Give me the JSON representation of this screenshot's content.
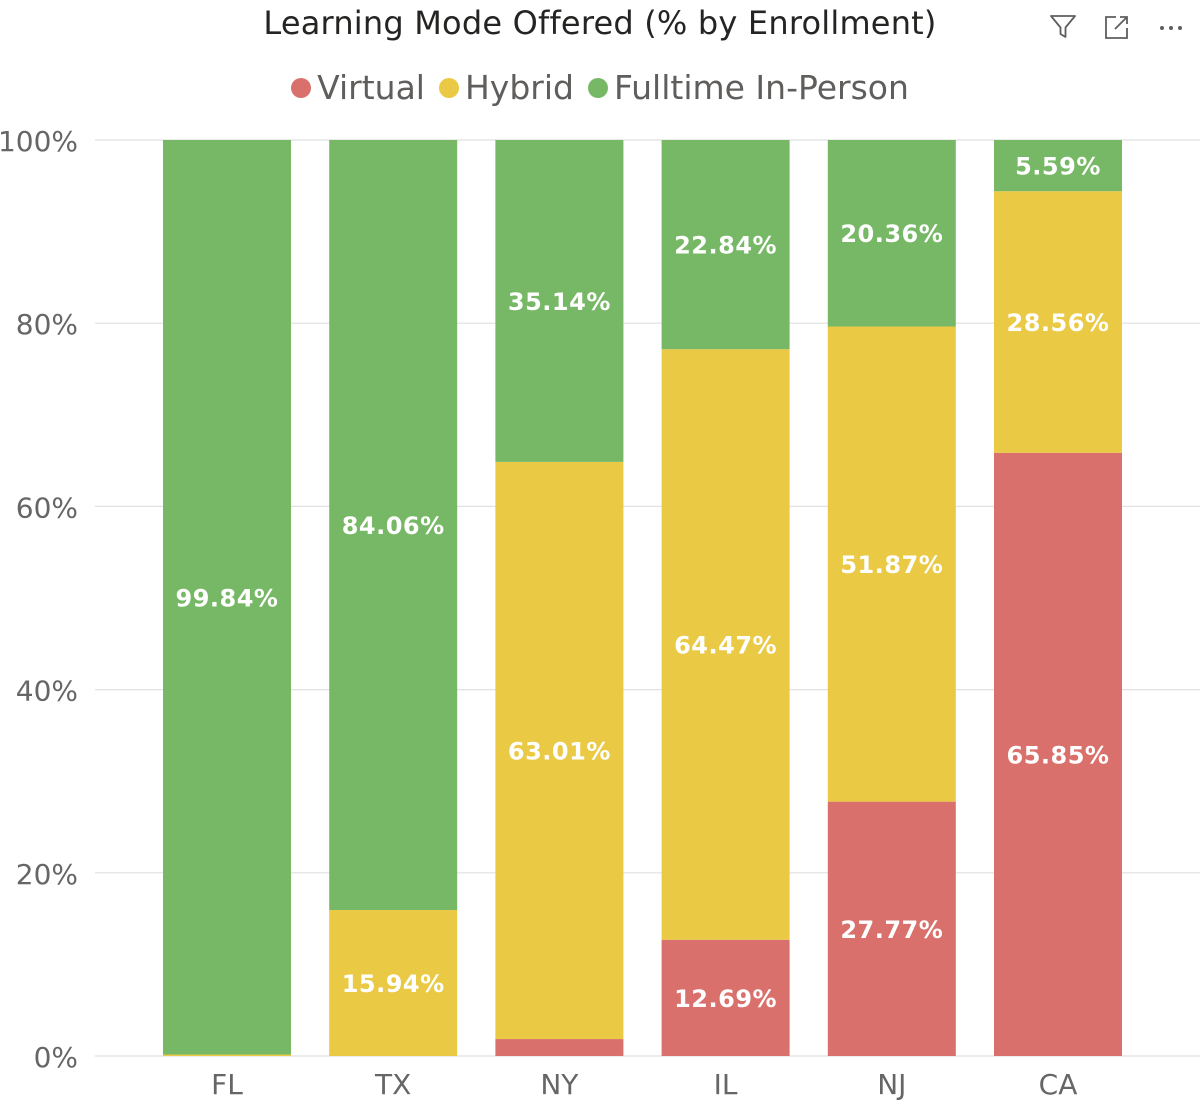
{
  "header": {
    "title": "Learning Mode Offered (% by Enrollment)",
    "icons": [
      "filter-icon",
      "focus-mode-icon",
      "more-options-icon"
    ]
  },
  "chart_data": {
    "type": "bar",
    "stacked": true,
    "title": "Learning Mode Offered (% by Enrollment)",
    "xlabel": "",
    "ylabel": "",
    "ylim": [
      0,
      100
    ],
    "y_ticks": [
      "0%",
      "20%",
      "40%",
      "60%",
      "80%",
      "100%"
    ],
    "categories": [
      "FL",
      "TX",
      "NY",
      "IL",
      "NJ",
      "CA"
    ],
    "legend_position": "top-center",
    "grid": true,
    "series": [
      {
        "name": "Virtual",
        "color": "#d9706b",
        "values": [
          0,
          0,
          1.85,
          12.69,
          27.77,
          65.85
        ],
        "labels": [
          "",
          "",
          "",
          "12.69%",
          "27.77%",
          "65.85%"
        ]
      },
      {
        "name": "Hybrid",
        "color": "#eac945",
        "values": [
          0.16,
          15.94,
          63.01,
          64.47,
          51.87,
          28.56
        ],
        "labels": [
          "",
          "15.94%",
          "63.01%",
          "64.47%",
          "51.87%",
          "28.56%"
        ]
      },
      {
        "name": "Fulltime In-Person",
        "color": "#76b865",
        "values": [
          99.84,
          84.06,
          35.14,
          22.84,
          20.36,
          5.59
        ],
        "labels": [
          "99.84%",
          "84.06%",
          "35.14%",
          "22.84%",
          "20.36%",
          "5.59%"
        ]
      }
    ]
  }
}
